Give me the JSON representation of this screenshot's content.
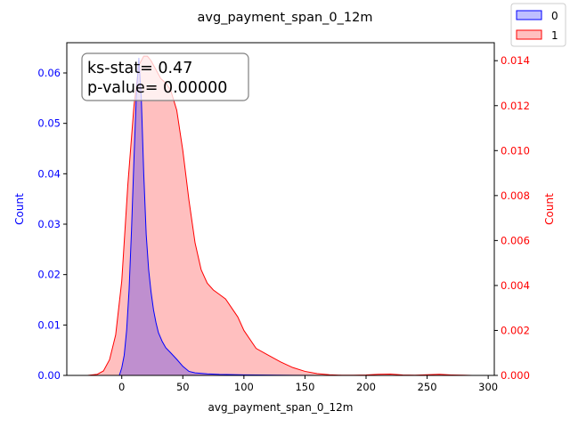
{
  "chart_data": {
    "type": "area",
    "title": "avg_payment_span_0_12m",
    "xlabel": "avg_payment_span_0_12m",
    "ylabel_left": "Count",
    "ylabel_right": "Count",
    "xlim": [
      -45,
      305
    ],
    "ylim_left": [
      0,
      0.066
    ],
    "ylim_right": [
      0,
      0.0148
    ],
    "x_ticks": [
      0,
      50,
      100,
      150,
      200,
      250,
      300
    ],
    "y_left_ticks": [
      0.0,
      0.01,
      0.02,
      0.03,
      0.04,
      0.05,
      0.06
    ],
    "y_right_ticks": [
      0.0,
      0.002,
      0.004,
      0.006,
      0.008,
      0.01,
      0.012,
      0.014
    ],
    "annotation": {
      "ks_stat": "ks-stat= 0.47",
      "p_value": "p-value= 0.00000"
    },
    "legend": {
      "placement": "top-right outside",
      "entries": [
        "0",
        "1"
      ]
    },
    "series": [
      {
        "name": "0",
        "axis": "left",
        "color": "#0000ff",
        "fill": "#0000ff",
        "x": [
          -2,
          0,
          2,
          4,
          6,
          8,
          10,
          12,
          14,
          16,
          18,
          20,
          22,
          24,
          26,
          28,
          30,
          33,
          36,
          40,
          45,
          50,
          55,
          60,
          70,
          80,
          100,
          120,
          140,
          160,
          175
        ],
        "values": [
          0,
          0.0015,
          0.004,
          0.009,
          0.017,
          0.029,
          0.043,
          0.056,
          0.063,
          0.055,
          0.04,
          0.028,
          0.021,
          0.0165,
          0.013,
          0.0105,
          0.0085,
          0.0068,
          0.0055,
          0.0045,
          0.0032,
          0.0018,
          0.0008,
          0.0005,
          0.0003,
          0.0002,
          0.00012,
          6e-05,
          3e-05,
          1e-05,
          0
        ]
      },
      {
        "name": "1",
        "axis": "right",
        "color": "#ff0000",
        "fill": "#ff0000",
        "x": [
          -28,
          -20,
          -15,
          -10,
          -5,
          0,
          5,
          10,
          14,
          18,
          21,
          24,
          28,
          32,
          36,
          40,
          45,
          50,
          55,
          60,
          65,
          70,
          75,
          80,
          85,
          90,
          95,
          100,
          110,
          120,
          130,
          140,
          150,
          160,
          170,
          180,
          190,
          200,
          210,
          220,
          230,
          240,
          250,
          260,
          270,
          280,
          287
        ],
        "values": [
          0,
          5e-05,
          0.0002,
          0.0007,
          0.0018,
          0.0042,
          0.0085,
          0.012,
          0.0138,
          0.0142,
          0.0142,
          0.014,
          0.0136,
          0.0132,
          0.013,
          0.0127,
          0.0118,
          0.01,
          0.0078,
          0.0059,
          0.0047,
          0.0041,
          0.0038,
          0.0036,
          0.0034,
          0.003,
          0.0026,
          0.002,
          0.0012,
          0.0009,
          0.0006,
          0.00035,
          0.00018,
          8e-05,
          3e-05,
          1e-05,
          1e-05,
          2e-05,
          5e-05,
          6e-05,
          2e-05,
          1e-05,
          3e-05,
          5e-05,
          2e-05,
          1e-05,
          0
        ]
      }
    ]
  }
}
